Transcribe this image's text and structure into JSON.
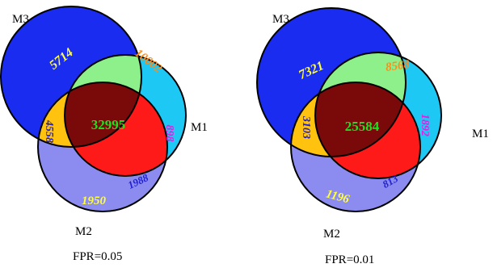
{
  "venn_diagrams": [
    {
      "fpr_label": "FPR=0.05",
      "set_labels": {
        "m1": "M1",
        "m2": "M2",
        "m3": "M3"
      },
      "regions": {
        "m3_only": "5714",
        "m1_m3": "10002",
        "m1_only": "898",
        "m2_m3": "4558",
        "m1_m2_m3": "32995",
        "m1_m2": "1988",
        "m2_only": "1950"
      }
    },
    {
      "fpr_label": "FPR=0.01",
      "set_labels": {
        "m1": "M1",
        "m2": "M2",
        "m3": "M3"
      },
      "regions": {
        "m3_only": "7321",
        "m1_m3": "8568",
        "m1_only": "1892",
        "m2_m3": "3103",
        "m1_m2_m3": "25584",
        "m1_m2": "813",
        "m2_only": "1196"
      }
    }
  ],
  "colors": {
    "m3_only": "#1a2cf0",
    "m1_only": "#1ec8f4",
    "m2_only": "#8c8cf0",
    "m1_m3": "#8ef08a",
    "m2_m3": "#ffc20e",
    "m1_m2": "#ff1a1a",
    "m1_m2_m3": "#7a0a0a",
    "outline": "#000000",
    "text_yellow": "#ffff40",
    "text_orange": "#ff8c1a",
    "text_magenta": "#e020e0",
    "text_blue": "#2020d0",
    "text_green": "#20e020"
  }
}
